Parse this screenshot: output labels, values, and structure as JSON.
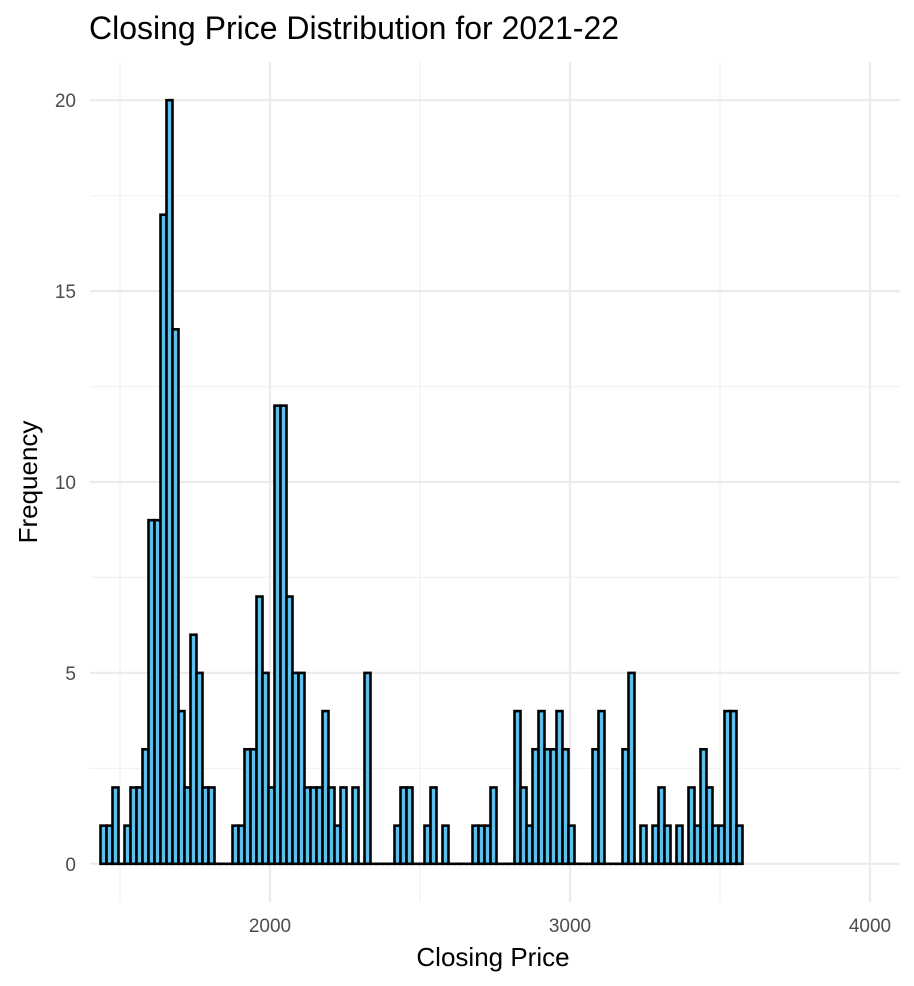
{
  "chart_data": {
    "type": "histogram",
    "title": "Closing Price Distribution for 2021-22",
    "xlabel": "Closing Price",
    "ylabel": "Frequency",
    "xlim": [
      1400,
      4100
    ],
    "ylim": [
      -1,
      21
    ],
    "x_ticks": [
      2000,
      3000,
      4000
    ],
    "y_ticks": [
      0,
      5,
      10,
      15,
      20
    ],
    "grid": true,
    "bin_start": 1435,
    "bin_width": 20,
    "bar_color": "#5BC0EB",
    "edge_color": "#000000",
    "counts": [
      1,
      1,
      2,
      0,
      1,
      2,
      2,
      3,
      9,
      9,
      17,
      20,
      14,
      4,
      2,
      6,
      5,
      2,
      2,
      0,
      0,
      0,
      1,
      1,
      3,
      3,
      7,
      5,
      2,
      12,
      12,
      7,
      5,
      5,
      2,
      2,
      2,
      4,
      2,
      1,
      2,
      0,
      2,
      0,
      5,
      0,
      0,
      0,
      0,
      1,
      2,
      2,
      0,
      0,
      1,
      2,
      0,
      1,
      0,
      0,
      0,
      0,
      1,
      1,
      1,
      2,
      0,
      0,
      0,
      4,
      2,
      1,
      3,
      4,
      3,
      3,
      4,
      3,
      1,
      0,
      0,
      0,
      3,
      4,
      0,
      0,
      0,
      3,
      5,
      0,
      1,
      0,
      1,
      2,
      1,
      0,
      1,
      0,
      2,
      1,
      3,
      2,
      1,
      1,
      4,
      4,
      1
    ]
  }
}
